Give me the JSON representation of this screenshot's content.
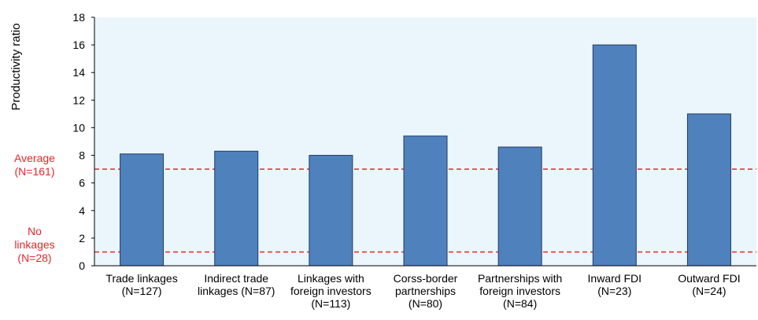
{
  "chart_data": {
    "type": "bar",
    "ylabel": "Productivity ratio",
    "ylim": [
      0,
      18
    ],
    "yticks": [
      "0",
      "2",
      "4",
      "6",
      "8",
      "10",
      "12",
      "14",
      "16",
      "18"
    ],
    "categories": [
      [
        "Trade linkages",
        "(N=127)"
      ],
      [
        "Indirect trade",
        "linkages (N=87)"
      ],
      [
        "Linkages with",
        "foreign investors",
        "(N=113)"
      ],
      [
        "Corss-border",
        "partnerships",
        "(N=80)"
      ],
      [
        "Partnerships with",
        "foreign investors",
        "(N=84)"
      ],
      [
        "Inward FDI",
        "(N=23)"
      ],
      [
        "Outward FDI",
        "(N=24)"
      ]
    ],
    "values": [
      8.1,
      8.3,
      8.0,
      9.4,
      8.6,
      16.0,
      11.0
    ],
    "reference_lines": [
      {
        "value": 7.0,
        "label": [
          "Average",
          "(N=161)"
        ]
      },
      {
        "value": 1.0,
        "label": [
          "No",
          "linkages",
          "(N=28)"
        ]
      }
    ],
    "colors": {
      "bar": "#4f81bd",
      "bar_stroke": "#1f3d66",
      "plot_bg": "#eaf6fb",
      "reference": "#e8262b"
    },
    "grid": false
  }
}
